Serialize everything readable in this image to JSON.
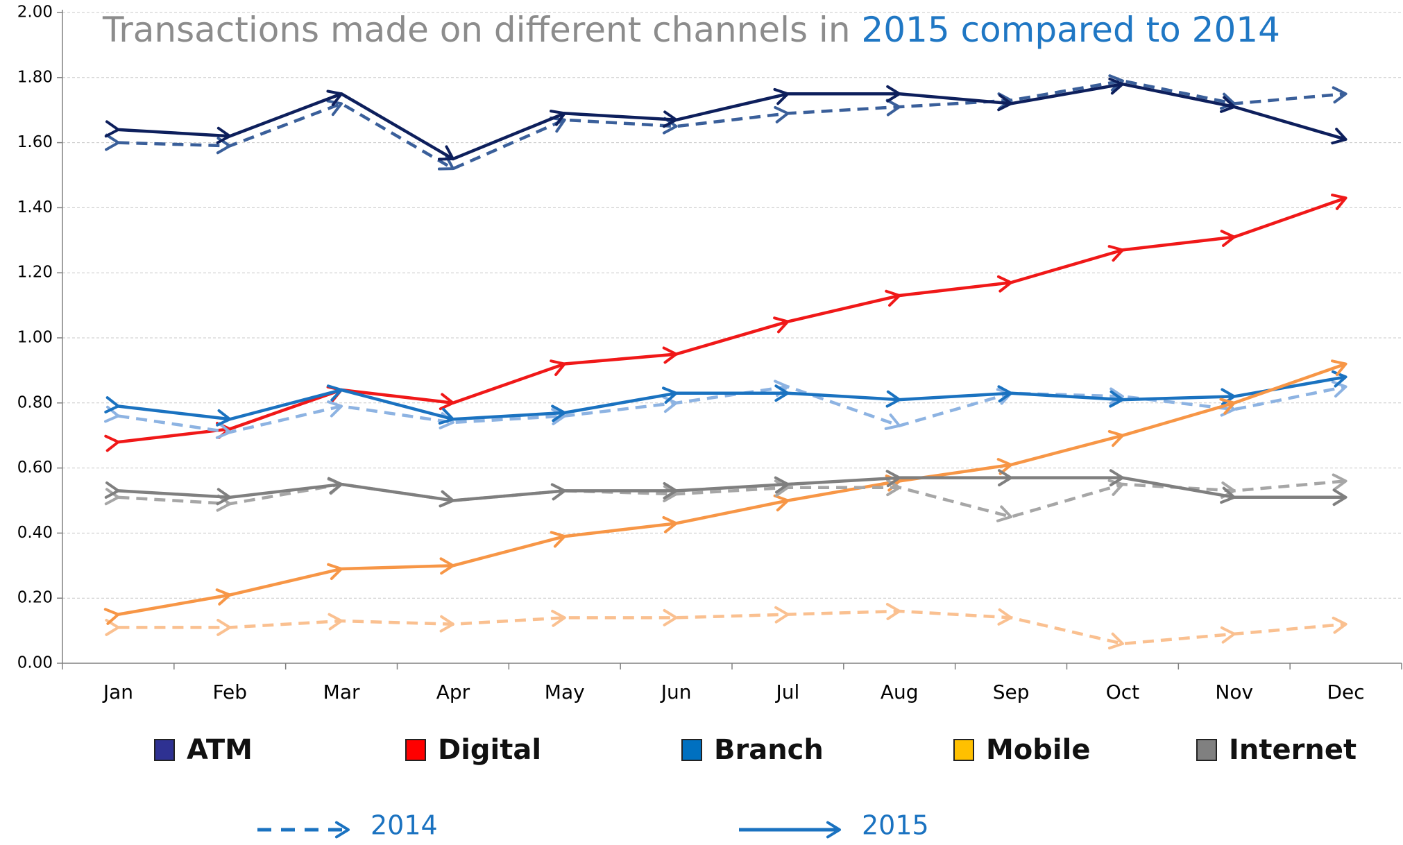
{
  "chart_data": {
    "type": "line",
    "title": "Transactions made on different channels in ",
    "title_highlight": "2015 compared to 2014",
    "categories": [
      "Jan",
      "Feb",
      "Mar",
      "Apr",
      "May",
      "Jun",
      "Jul",
      "Aug",
      "Sep",
      "Oct",
      "Nov",
      "Dec"
    ],
    "ylim": [
      0,
      2
    ],
    "yticks": [
      {
        "value": 0,
        "label": "0.00"
      },
      {
        "value": 0.2,
        "label": "0.20"
      },
      {
        "value": 0.4,
        "label": "0.40"
      },
      {
        "value": 0.6,
        "label": "0.60"
      },
      {
        "value": 0.8,
        "label": "0.80"
      },
      {
        "value": 1,
        "label": "1.00"
      },
      {
        "value": 1.2,
        "label": "1.20"
      },
      {
        "value": 1.4,
        "label": "1.40"
      },
      {
        "value": 1.6,
        "label": "1.60"
      },
      {
        "value": 1.8,
        "label": "1.80"
      },
      {
        "value": 2,
        "label": "2.00"
      }
    ],
    "grid": true,
    "series": [
      {
        "name": "ATM",
        "year": "2014",
        "dashed": true,
        "color": "#3a5f9a",
        "values": [
          1.6,
          1.59,
          1.72,
          1.52,
          1.67,
          1.65,
          1.69,
          1.71,
          1.73,
          1.79,
          1.72,
          1.75
        ]
      },
      {
        "name": "ATM",
        "year": "2015",
        "dashed": false,
        "color": "#0d1f5c",
        "values": [
          1.64,
          1.62,
          1.75,
          1.55,
          1.69,
          1.67,
          1.75,
          1.75,
          1.72,
          1.78,
          1.71,
          1.61
        ]
      },
      {
        "name": "Digital",
        "year": "2015",
        "dashed": false,
        "color": "#f01818",
        "values": [
          0.68,
          0.72,
          0.84,
          0.8,
          0.92,
          0.95,
          1.05,
          1.13,
          1.17,
          1.27,
          1.31,
          1.43
        ]
      },
      {
        "name": "Branch",
        "year": "2014",
        "dashed": true,
        "color": "#8db3e2",
        "values": [
          0.76,
          0.71,
          0.79,
          0.74,
          0.76,
          0.8,
          0.85,
          0.73,
          0.83,
          0.82,
          0.78,
          0.85
        ]
      },
      {
        "name": "Branch",
        "year": "2015",
        "dashed": false,
        "color": "#1a72c0",
        "values": [
          0.79,
          0.75,
          0.84,
          0.75,
          0.77,
          0.83,
          0.83,
          0.81,
          0.83,
          0.81,
          0.82,
          0.88
        ]
      },
      {
        "name": "Mobile",
        "year": "2014",
        "dashed": true,
        "color": "#fac090",
        "values": [
          0.11,
          0.11,
          0.13,
          0.12,
          0.14,
          0.14,
          0.15,
          0.16,
          0.14,
          0.06,
          0.09,
          0.12
        ]
      },
      {
        "name": "Mobile",
        "year": "2015",
        "dashed": false,
        "color": "#f79646",
        "values": [
          0.15,
          0.21,
          0.29,
          0.3,
          0.39,
          0.43,
          0.5,
          0.56,
          0.61,
          0.7,
          0.8,
          0.92
        ]
      },
      {
        "name": "Internet",
        "year": "2014",
        "dashed": true,
        "color": "#a6a6a6",
        "values": [
          0.51,
          0.49,
          0.55,
          0.5,
          0.53,
          0.52,
          0.54,
          0.54,
          0.45,
          0.55,
          0.53,
          0.56
        ]
      },
      {
        "name": "Internet",
        "year": "2015",
        "dashed": false,
        "color": "#7f7f7f",
        "values": [
          0.53,
          0.51,
          0.55,
          0.5,
          0.53,
          0.53,
          0.55,
          0.57,
          0.57,
          0.57,
          0.51,
          0.51
        ]
      }
    ],
    "legend": {
      "items": [
        {
          "name": "ATM",
          "color": "#2e3192"
        },
        {
          "name": "Digital",
          "color": "#ff0000"
        },
        {
          "name": "Branch",
          "color": "#0070c0"
        },
        {
          "name": "Mobile",
          "color": "#ffc000"
        },
        {
          "name": "Internet",
          "color": "#808080"
        }
      ],
      "styles": [
        {
          "label": "2014",
          "dashed": true,
          "color": "#1a72c0"
        },
        {
          "label": "2015",
          "dashed": false,
          "color": "#1a72c0"
        }
      ]
    }
  }
}
